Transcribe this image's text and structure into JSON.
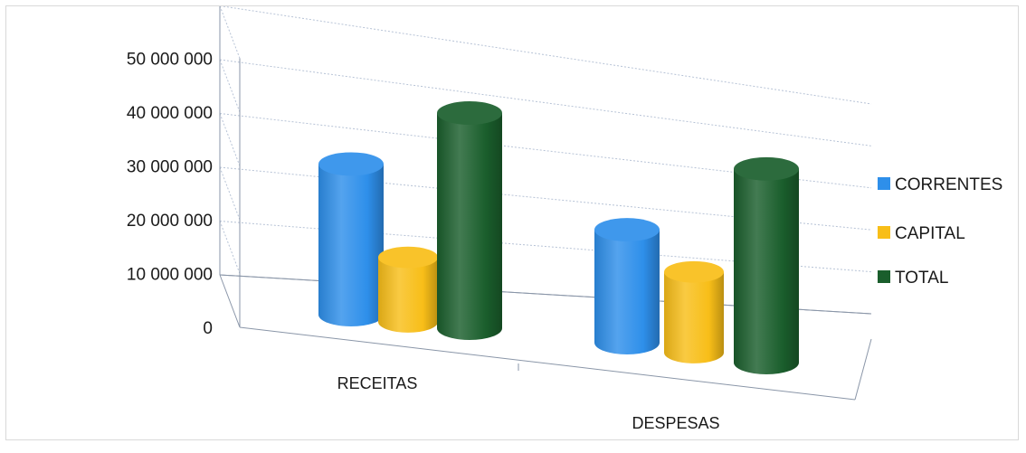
{
  "chart_data": {
    "type": "bar",
    "style": "3d-cylinder",
    "categories": [
      "RECEITAS",
      "DESPESAS"
    ],
    "series": [
      {
        "name": "CORRENTES",
        "values": [
          28000000,
          21000000
        ],
        "color": "#2e8fea"
      },
      {
        "name": "CAPITAL",
        "values": [
          12000000,
          15000000
        ],
        "color": "#f8be18"
      },
      {
        "name": "TOTAL",
        "values": [
          40000000,
          36000000
        ],
        "color": "#1a5e2c"
      }
    ],
    "ylim": [
      0,
      50000000
    ],
    "yticks": [
      0,
      10000000,
      20000000,
      30000000,
      40000000,
      50000000
    ],
    "ytick_labels": [
      "0",
      "10 000 000",
      "20 000 000",
      "30 000 000",
      "40 000 000",
      "50 000 000"
    ],
    "grid": true,
    "legend_position": "right",
    "title": "",
    "xlabel": "",
    "ylabel": ""
  }
}
